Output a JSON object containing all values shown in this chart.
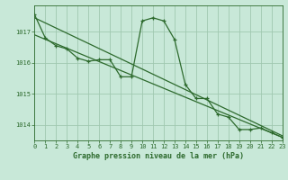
{
  "title": "Graphe pression niveau de la mer (hPa)",
  "bg_color": "#c8e8d8",
  "grid_color_major": "#a0c8b0",
  "grid_color_minor": "#b8d8c8",
  "line_color": "#2d6a2d",
  "xlim": [
    0,
    23
  ],
  "ylim": [
    1013.5,
    1017.85
  ],
  "yticks": [
    1014,
    1015,
    1016,
    1017
  ],
  "xticks": [
    0,
    1,
    2,
    3,
    4,
    5,
    6,
    7,
    8,
    9,
    10,
    11,
    12,
    13,
    14,
    15,
    16,
    17,
    18,
    19,
    20,
    21,
    22,
    23
  ],
  "series_main_x": [
    0,
    1,
    2,
    3,
    4,
    5,
    6,
    7,
    8,
    9,
    10,
    11,
    12,
    13,
    14,
    15,
    16,
    17,
    18,
    19,
    20,
    21,
    22,
    23
  ],
  "series_main_y": [
    1017.55,
    1016.8,
    1016.55,
    1016.45,
    1016.15,
    1016.05,
    1016.1,
    1016.1,
    1015.55,
    1015.55,
    1017.35,
    1017.45,
    1017.35,
    1016.75,
    1015.3,
    1014.85,
    1014.85,
    1014.35,
    1014.25,
    1013.85,
    1013.85,
    1013.9,
    1013.75,
    1013.6
  ],
  "trend1_x": [
    0,
    23
  ],
  "trend1_y": [
    1017.45,
    1013.65
  ],
  "trend2_x": [
    0,
    23
  ],
  "trend2_y": [
    1016.9,
    1013.6
  ]
}
